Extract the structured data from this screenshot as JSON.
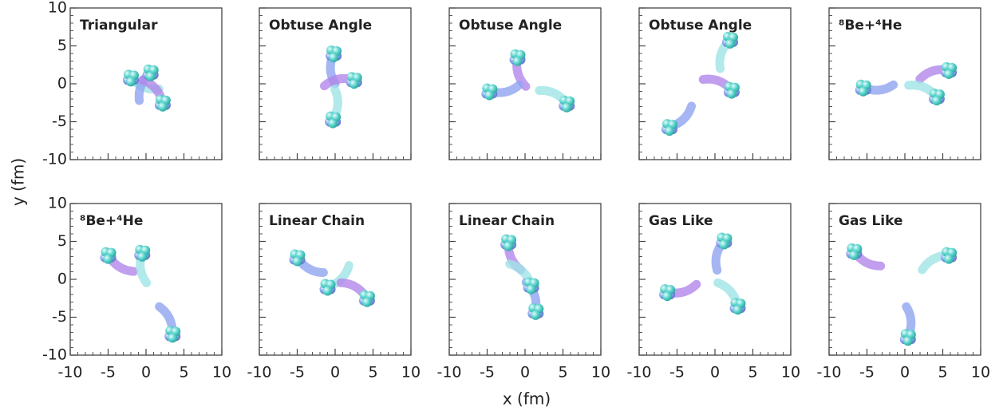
{
  "labels": {
    "x": "x (fm)",
    "y": "y (fm)"
  },
  "chart_data": [
    {
      "type": "scatter",
      "title": "Triangular",
      "x": [
        -2,
        0.6,
        2.2
      ],
      "y": [
        0.8,
        1.5,
        -2.5
      ],
      "colors": [
        "#9fe3e6",
        "#8fa4f0",
        "#b286ea"
      ],
      "xlim": [
        -10,
        10
      ],
      "ylim": [
        -10,
        10
      ],
      "xticks": [
        -10,
        -5,
        0,
        5,
        10
      ],
      "yticks": [
        -10,
        -5,
        0,
        5,
        10
      ]
    },
    {
      "type": "scatter",
      "title": "Obtuse Angle",
      "x": [
        -0.2,
        2.5,
        -0.3
      ],
      "y": [
        4,
        0.5,
        -4.7
      ],
      "colors": [
        "#8fa4f0",
        "#b286ea",
        "#9fe3e6"
      ],
      "xlim": [
        -10,
        10
      ],
      "ylim": [
        -10,
        10
      ],
      "xticks": [
        -10,
        -5,
        0,
        5,
        10
      ],
      "yticks": [
        -10,
        -5,
        0,
        5,
        10
      ]
    },
    {
      "type": "scatter",
      "title": "Obtuse Angle",
      "x": [
        -1,
        -4.7,
        5.5
      ],
      "y": [
        3.5,
        -1,
        -2.6
      ],
      "colors": [
        "#b286ea",
        "#8fa4f0",
        "#9fe3e6"
      ],
      "xlim": [
        -10,
        10
      ],
      "ylim": [
        -10,
        10
      ],
      "xticks": [
        -10,
        -5,
        0,
        5,
        10
      ],
      "yticks": [
        -10,
        -5,
        0,
        5,
        10
      ]
    },
    {
      "type": "scatter",
      "title": "Obtuse Angle",
      "x": [
        2,
        2.2,
        -6
      ],
      "y": [
        5.8,
        -0.8,
        -5.7
      ],
      "colors": [
        "#9fe3e6",
        "#b286ea",
        "#8fa4f0"
      ],
      "xlim": [
        -10,
        10
      ],
      "ylim": [
        -10,
        10
      ],
      "xticks": [
        -10,
        -5,
        0,
        5,
        10
      ],
      "yticks": [
        -10,
        -5,
        0,
        5,
        10
      ]
    },
    {
      "type": "scatter",
      "title": "⁸Be+⁴He",
      "x": [
        -5.5,
        5.8,
        4.2
      ],
      "y": [
        -0.5,
        1.8,
        -1.7
      ],
      "colors": [
        "#8fa4f0",
        "#b286ea",
        "#9fe3e6"
      ],
      "xlim": [
        -10,
        10
      ],
      "ylim": [
        -10,
        10
      ],
      "xticks": [
        -10,
        -5,
        0,
        5,
        10
      ],
      "yticks": [
        -10,
        -5,
        0,
        5,
        10
      ]
    },
    {
      "type": "scatter",
      "title": "⁸Be+⁴He",
      "x": [
        -5,
        -0.5,
        3.5
      ],
      "y": [
        3.2,
        3.5,
        -7.2
      ],
      "colors": [
        "#b286ea",
        "#9fe3e6",
        "#8fa4f0"
      ],
      "xlim": [
        -10,
        10
      ],
      "ylim": [
        -10,
        10
      ],
      "xticks": [
        -10,
        -5,
        0,
        5,
        10
      ],
      "yticks": [
        -10,
        -5,
        0,
        5,
        10
      ]
    },
    {
      "type": "scatter",
      "title": "Linear Chain",
      "x": [
        -5,
        -1,
        4.2
      ],
      "y": [
        2.9,
        -1,
        -2.5
      ],
      "colors": [
        "#8fa4f0",
        "#9fe3e6",
        "#b286ea"
      ],
      "xlim": [
        -10,
        10
      ],
      "ylim": [
        -10,
        10
      ],
      "xticks": [
        -10,
        -5,
        0,
        5,
        10
      ],
      "yticks": [
        -10,
        -5,
        0,
        5,
        10
      ]
    },
    {
      "type": "scatter",
      "title": "Linear Chain",
      "x": [
        -2.2,
        0.8,
        1.4
      ],
      "y": [
        4.9,
        -0.8,
        -4.2
      ],
      "colors": [
        "#b286ea",
        "#9fe3e6",
        "#8fa4f0"
      ],
      "xlim": [
        -10,
        10
      ],
      "ylim": [
        -10,
        10
      ],
      "xticks": [
        -10,
        -5,
        0,
        5,
        10
      ],
      "yticks": [
        -10,
        -5,
        0,
        5,
        10
      ]
    },
    {
      "type": "scatter",
      "title": "Gas Like",
      "x": [
        1.2,
        -6.3,
        3
      ],
      "y": [
        5.1,
        -1.7,
        -3.5
      ],
      "colors": [
        "#8fa4f0",
        "#b286ea",
        "#9fe3e6"
      ],
      "xlim": [
        -10,
        10
      ],
      "ylim": [
        -10,
        10
      ],
      "xticks": [
        -10,
        -5,
        0,
        5,
        10
      ],
      "yticks": [
        -10,
        -5,
        0,
        5,
        10
      ]
    },
    {
      "type": "scatter",
      "title": "Gas Like",
      "x": [
        -6.7,
        5.8,
        0.4
      ],
      "y": [
        3.7,
        3.2,
        -7.6
      ],
      "colors": [
        "#b286ea",
        "#9fe3e6",
        "#8fa4f0"
      ],
      "xlim": [
        -10,
        10
      ],
      "ylim": [
        -10,
        10
      ],
      "xticks": [
        -10,
        -5,
        0,
        5,
        10
      ],
      "yticks": [
        -10,
        -5,
        0,
        5,
        10
      ]
    }
  ]
}
